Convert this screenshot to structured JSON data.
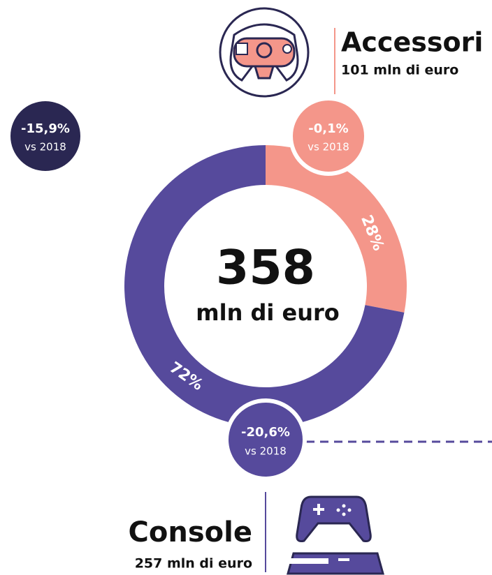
{
  "chart_data": {
    "type": "donut",
    "center_value": 358,
    "center_label": "mln di euro",
    "categories": [
      "Accessori",
      "Console"
    ],
    "values": [
      28,
      72
    ],
    "value_labels": [
      "28%",
      "72%"
    ],
    "colors": [
      "#f4968a",
      "#564a9c"
    ],
    "amounts": [
      "101 mln di euro",
      "257 mln di euro"
    ],
    "changes": [
      "-0,1%",
      "-20,6%"
    ],
    "change_labels": [
      "vs 2018",
      "vs 2018"
    ]
  },
  "total_badge": {
    "change": "-15,9%",
    "label": "vs 2018"
  }
}
